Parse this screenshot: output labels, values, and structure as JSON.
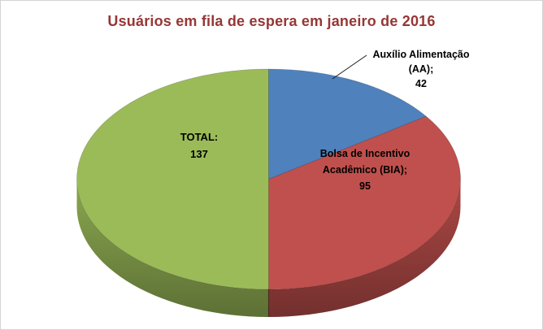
{
  "chart_data": {
    "type": "pie",
    "style": "3d-pie",
    "title": "Usuários em fila de espera em janeiro de 2016",
    "legend": "none",
    "start_angle_deg": 0,
    "direction": "clockwise",
    "slices": [
      {
        "id": "aa",
        "label": "Auxílio Alimentação (AA)",
        "value": 42,
        "color": "#4F81BD"
      },
      {
        "id": "bia",
        "label": "Bolsa de Incentivo Acadêmico (BIA)",
        "value": 95,
        "color": "#C0504D"
      },
      {
        "id": "total",
        "label": "TOTAL",
        "value": 137,
        "color": "#9BBB59"
      }
    ]
  },
  "labels": {
    "aa": {
      "lines": [
        "Auxílio Alimentação",
        "(AA);",
        "42"
      ]
    },
    "bia": {
      "lines": [
        "Bolsa de Incentivo",
        "Acadêmico (BIA);",
        "95"
      ]
    },
    "total": {
      "lines": [
        "TOTAL:",
        "137"
      ]
    }
  },
  "colors": {
    "title": "#953735",
    "label_text": "#000000",
    "leader_line": "#1a1a1a",
    "frame_border": "#d3d3d3",
    "background": "#ffffff"
  }
}
